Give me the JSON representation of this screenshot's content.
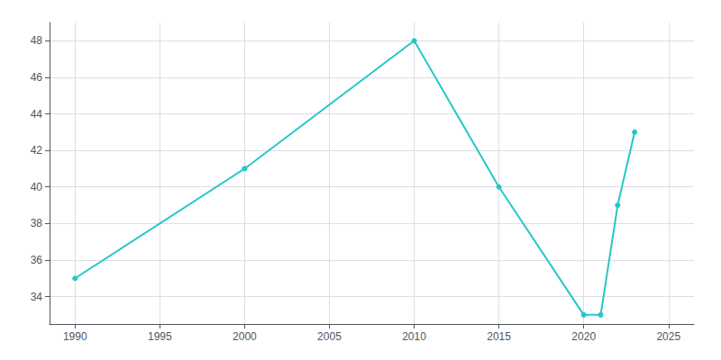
{
  "chart_data": {
    "type": "line",
    "x": [
      1990,
      2000,
      2010,
      2015,
      2020,
      2021,
      2022,
      2023
    ],
    "values": [
      35,
      41,
      48,
      40,
      33,
      33,
      39,
      43
    ],
    "color": "#26C6C6",
    "marker": "circle",
    "xlim": [
      1988.5,
      2026.5
    ],
    "xticks": [
      1990,
      1995,
      2000,
      2005,
      2010,
      2015,
      2020,
      2025
    ],
    "ylim": [
      32.5,
      49.0
    ],
    "yticks": [
      34,
      36,
      38,
      40,
      42,
      44,
      46,
      48
    ],
    "grid": true
  }
}
